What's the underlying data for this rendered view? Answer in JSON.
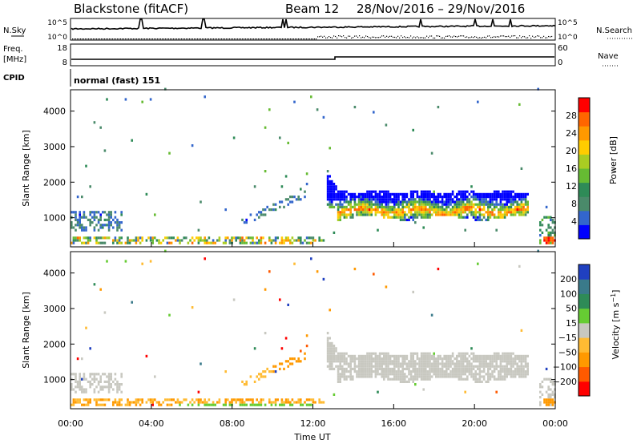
{
  "header": {
    "station": "Blackstone (fitACF)",
    "beam": "Beam 12",
    "dates": "28/Nov/2016 – 29/Nov/2016"
  },
  "panels": {
    "noise": {
      "left_label": "N.Sky",
      "right_label": "N.Search",
      "left_ticks": [
        "10^5",
        "10^0"
      ],
      "right_ticks": [
        "10^5",
        "10^0"
      ]
    },
    "freq": {
      "left_label_1": "Freq.",
      "left_label_2": "[MHz]",
      "left_ticks": [
        "18",
        "8"
      ],
      "right_label": "Nave",
      "right_ticks": [
        "60",
        "0"
      ]
    },
    "cpid": {
      "label": "CPID",
      "value": "normal (fast) 151"
    }
  },
  "colors": {
    "power": [
      "#0000ff",
      "#3366cc",
      "#4a8a6a",
      "#2e8b57",
      "#66bb33",
      "#aacc22",
      "#ffcc00",
      "#ff9900",
      "#ff6600",
      "#ff0000"
    ],
    "velocity": [
      "#ff0000",
      "#ff5a00",
      "#ff9900",
      "#ffbb33",
      "#c8c8c0",
      "#66cc33",
      "#2e8b57",
      "#3a7a8a",
      "#2040c0"
    ]
  },
  "chart_data": [
    {
      "type": "heatmap",
      "name": "power",
      "ylabel": "Slant Range [km]",
      "yticks": [
        1000,
        2000,
        3000,
        4000
      ],
      "ylim": [
        180,
        4600
      ],
      "xlim": [
        0,
        24
      ],
      "colorbar_label": "Power [dB]",
      "colorbar_ticks": [
        4,
        8,
        12,
        16,
        20,
        24,
        28
      ],
      "clim": [
        0,
        32
      ]
    },
    {
      "type": "heatmap",
      "name": "velocity",
      "ylabel": "Slant Range [km]",
      "yticks": [
        1000,
        2000,
        3000,
        4000
      ],
      "ylim": [
        180,
        4600
      ],
      "xlim": [
        0,
        24
      ],
      "xticks": [
        "00:00",
        "04:00",
        "08:00",
        "12:00",
        "16:00",
        "20:00",
        "00:00"
      ],
      "xlabel": "Time UT",
      "colorbar_label": "Velocity [m s^-1]",
      "colorbar_ticks": [
        "200",
        "100",
        "50",
        "15",
        "−15",
        "−50",
        "−100",
        "−200"
      ]
    }
  ]
}
